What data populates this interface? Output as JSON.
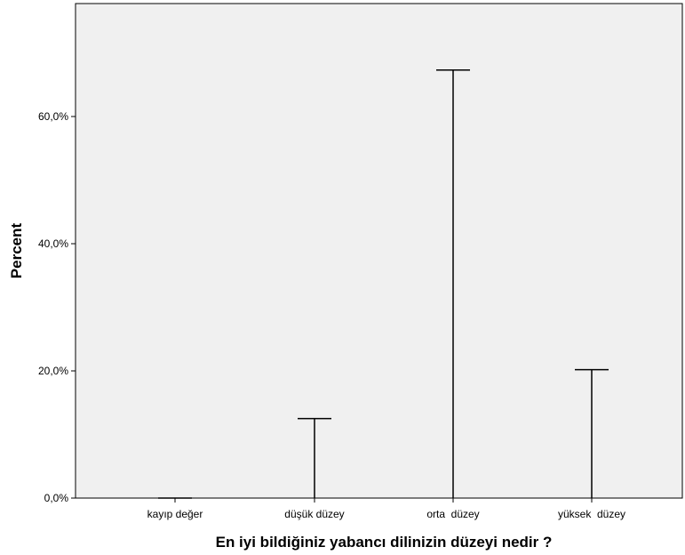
{
  "chart_data": {
    "type": "bar",
    "style": "drop-line with cap",
    "title": "",
    "xlabel": "En iyi bildiğiniz yabancı dilinizin düzeyi nedir ?",
    "ylabel": "Percent",
    "categories": [
      "kayıp değer",
      "düşük düzey",
      "orta  düzey",
      "yüksek  düzey"
    ],
    "values": [
      0.0,
      12.5,
      67.3,
      20.2
    ],
    "y_ticks": [
      0,
      20,
      40,
      60
    ],
    "y_tick_labels": [
      "0,0%",
      "20,0%",
      "40,0%",
      "60,0%"
    ],
    "ylim": [
      0,
      78
    ],
    "grid": false,
    "legend": "none",
    "colors": {
      "plot_background": "#f0f0f0",
      "line": "#000000"
    }
  }
}
